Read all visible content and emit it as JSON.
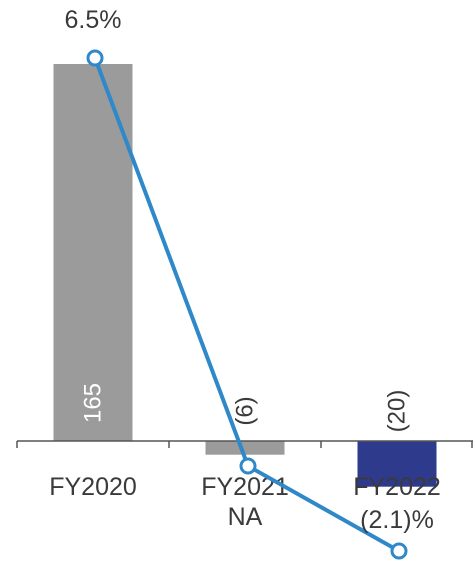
{
  "chart_data": {
    "type": "bar",
    "categories": [
      "FY2020",
      "FY2021",
      "FY2022"
    ],
    "series": [
      {
        "values": [
          165,
          -6,
          -20
        ],
        "value_labels": [
          "165",
          "(6)",
          "(20)"
        ],
        "colors": [
          "#9b9b9b",
          "#9b9b9b",
          "#2e3a8c"
        ]
      },
      {
        "values": [
          6.5,
          null,
          -2.1
        ],
        "point_labels": [
          "6.5%",
          "NA",
          "(2.1)%"
        ],
        "color": "#2f88c8"
      }
    ],
    "xlabel": "",
    "ylabel": "",
    "ylim": [
      -20,
      165
    ],
    "line_ylim": [
      -2.1,
      6.5
    ],
    "grid": false,
    "legend": "none"
  }
}
